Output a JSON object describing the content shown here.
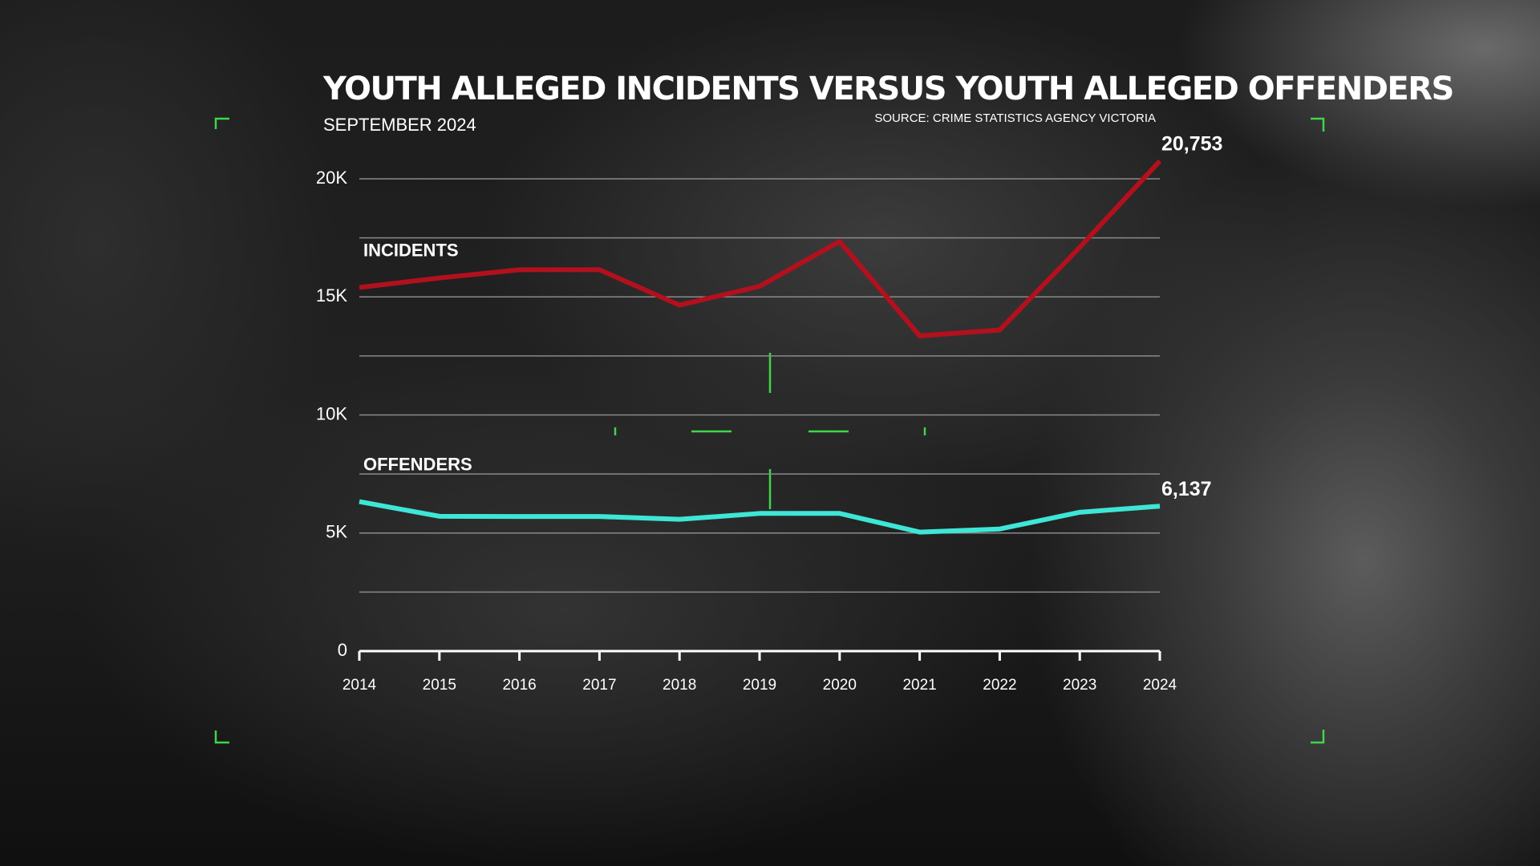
{
  "chart_data": {
    "type": "line",
    "title": "YOUTH ALLEGED INCIDENTS VERSUS YOUTH ALLEGED OFFENDERS",
    "subtitle": "SEPTEMBER 2024",
    "source": "SOURCE: CRIME STATISTICS AGENCY VICTORIA",
    "x": [
      2014,
      2015,
      2016,
      2017,
      2018,
      2019,
      2020,
      2021,
      2022,
      2023,
      2024
    ],
    "xlim": [
      2014,
      2024
    ],
    "xticks": [
      2014,
      2015,
      2016,
      2017,
      2018,
      2019,
      2020,
      2021,
      2022,
      2023,
      2024
    ],
    "ylim": [
      0,
      20000
    ],
    "yticks": [
      0,
      {
        "value": 5000,
        "label": "5K"
      },
      {
        "value": 10000,
        "label": "10K"
      },
      {
        "value": 15000,
        "label": "15K"
      },
      {
        "value": 20000,
        "label": "20K"
      }
    ],
    "minor_grid_yticks": [
      2500,
      7500,
      12500,
      17500
    ],
    "grid": true,
    "series": [
      {
        "name": "INCIDENTS",
        "color": "#b3101d",
        "values": [
          15400,
          15800,
          16150,
          16150,
          14650,
          15450,
          17350,
          13350,
          13600,
          17100,
          20753
        ],
        "value_labels": [
          null,
          null,
          null,
          null,
          null,
          null,
          null,
          null,
          null,
          null,
          "20,753"
        ]
      },
      {
        "name": "OFFENDERS",
        "color": "#3ee6d6",
        "values": [
          6330,
          5710,
          5700,
          5700,
          5580,
          5830,
          5830,
          5040,
          5170,
          5880,
          6137
        ],
        "value_labels": [
          null,
          null,
          null,
          null,
          null,
          null,
          null,
          null,
          null,
          null,
          "6,137"
        ]
      }
    ]
  }
}
